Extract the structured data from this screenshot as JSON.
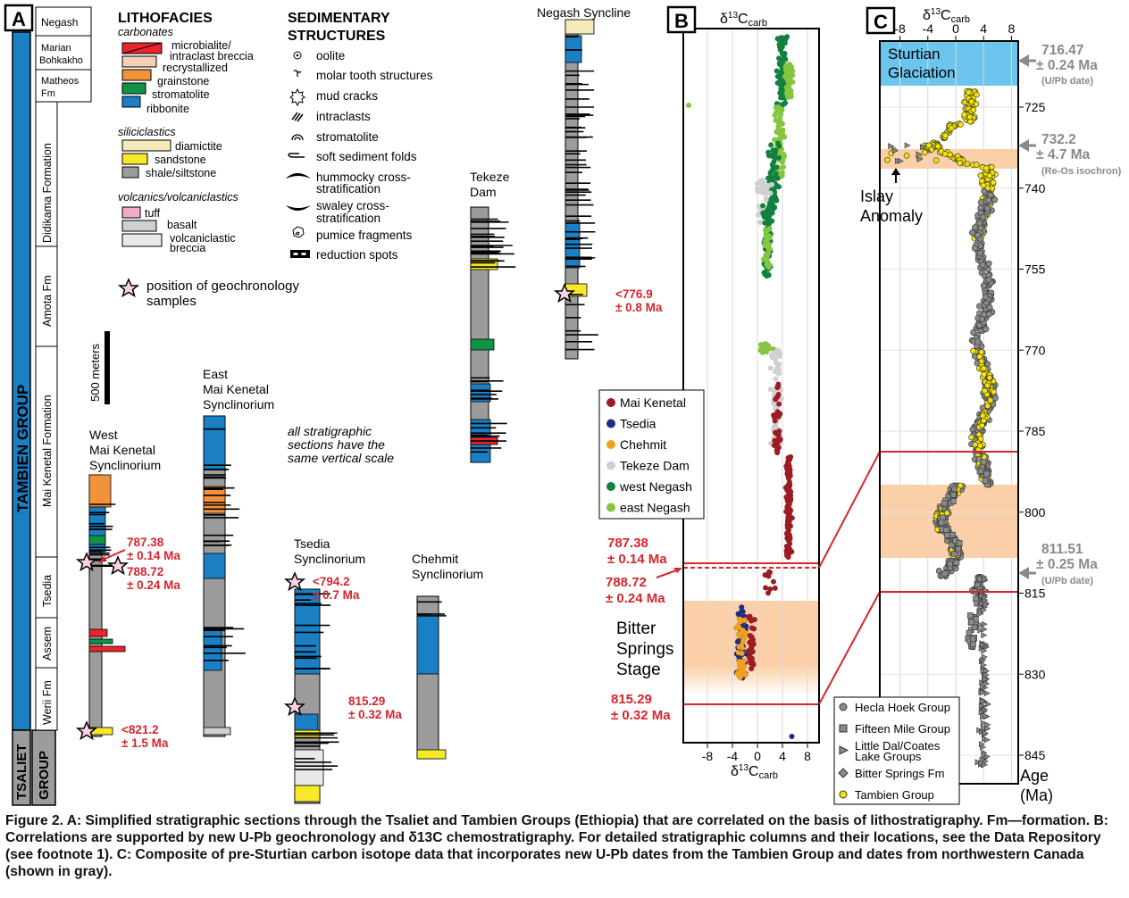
{
  "panels": {
    "a": "A",
    "b": "B",
    "c": "C"
  },
  "formations": {
    "negash": "Negash",
    "marian_1": "Marian",
    "marian_2": "Bohkakho",
    "matheos_1": "Matheos",
    "matheos_2": "Fm",
    "didikama": "Didikama Formation",
    "amota": "Amota Fm",
    "mai_kenetal": "Mai Kenetal Formation",
    "tsedia": "Tsedia",
    "assem": "Assem",
    "werii": "Werii Fm",
    "tambien_group": "TAMBIEN GROUP",
    "tsaliet_1": "TSALIET",
    "tsaliet_2": "GROUP"
  },
  "legend_litho": {
    "title": "LITHOFACIES",
    "carbonates": "carbonates",
    "microbialite_1": "microbialite/",
    "microbialite_2": "intraclast breccia",
    "recrystallized": "recrystallized",
    "grainstone": "grainstone",
    "stromatolite": "stromatolite",
    "ribbonite": "ribbonite",
    "siliciclastics": "siliciclastics",
    "diamictite": "diamictite",
    "sandstone": "sandstone",
    "shale": "shale/siltstone",
    "volcanics": "volcanics/volcaniclastics",
    "tuff": "tuff",
    "basalt": "basalt",
    "volc_1": "volcaniclastic",
    "volc_2": "breccia",
    "geochron_1": "position of geochronology",
    "geochron_2": "samples",
    "colors": {
      "microbialite": "#e8262b",
      "recrystallized": "#f6d0b4",
      "grainstone": "#f2933c",
      "stromatolite": "#0f9447",
      "ribbonite": "#1a7fc3",
      "diamictite": "#f4e9b8",
      "sandstone": "#f7e92a",
      "shale": "#9c9c9c",
      "tuff": "#f2aac8",
      "basalt": "#cfcfcf",
      "volcaniclastic": "#e8e8e8"
    }
  },
  "legend_sed": {
    "title_1": "SEDIMENTARY",
    "title_2": "STRUCTURES",
    "oolite": "oolite",
    "molar": "molar tooth structures",
    "mudcracks": "mud cracks",
    "intraclasts": "intraclasts",
    "stromatolite": "stromatolite",
    "folds": "soft sediment folds",
    "hcs_1": "hummocky cross-",
    "hcs_2": "stratification",
    "scs_1": "swaley cross-",
    "scs_2": "stratification",
    "pumice": "pumice fragments",
    "reduction": "reduction spots"
  },
  "scale": {
    "label": "500 meters",
    "note_1": "all stratigraphic",
    "note_2": "sections have the",
    "note_3": "same vertical scale"
  },
  "sections": {
    "west_1": "West",
    "west_2": "Mai Kenetal",
    "west_3": "Synclinorium",
    "east_1": "East",
    "east_2": "Mai Kenetal",
    "east_3": "Synclinorium",
    "tsedia_1": "Tsedia",
    "tsedia_2": "Synclinorium",
    "chehmit_1": "Chehmit",
    "chehmit_2": "Synclinorium",
    "tekeze_1": "Tekeze",
    "tekeze_2": "Dam",
    "negash": "Negash Syncline"
  },
  "dates_a": {
    "d787_1": "787.38",
    "d787_2": "± 0.14 Ma",
    "d788_1": "788.72",
    "d788_2": "± 0.24 Ma",
    "d821_1": "<821.2",
    "d821_2": "± 1.5 Ma",
    "d794_1": "<794.2",
    "d794_2": "± 0.7 Ma",
    "d815_1": "815.29",
    "d815_2": "± 0.32 Ma",
    "d776_1": "<776.9",
    "d776_2": "± 0.8 Ma"
  },
  "panel_b": {
    "title_pre": "δ",
    "title_sup": "13",
    "title_main": "C",
    "title_sub": "carb",
    "xticks": [
      "-8",
      "-4",
      "0",
      "4",
      "8"
    ],
    "legend": [
      {
        "label": "Mai Kenetal",
        "color": "#9b1c22"
      },
      {
        "label": "Tsedia",
        "color": "#232a7e"
      },
      {
        "label": "Chehmit",
        "color": "#f0a020"
      },
      {
        "label": "Tekeze Dam",
        "color": "#d0d0d0"
      },
      {
        "label": "west Negash",
        "color": "#12803f"
      },
      {
        "label": "east Negash",
        "color": "#86c540"
      }
    ],
    "d787_1": "787.38",
    "d787_2": "± 0.14 Ma",
    "d788_1": "788.72",
    "d788_2": "± 0.24 Ma",
    "bitter_1": "Bitter",
    "bitter_2": "Springs",
    "bitter_3": "Stage",
    "d815_1": "815.29",
    "d815_2": "± 0.32 Ma"
  },
  "panel_c": {
    "xticks": [
      "-8",
      "-4",
      "0",
      "4",
      "8"
    ],
    "yticks": [
      "725",
      "740",
      "755",
      "770",
      "785",
      "800",
      "815",
      "830",
      "845"
    ],
    "yaxis_1": "Age",
    "yaxis_2": "(Ma)",
    "sturtian_1": "Sturtian",
    "sturtian_2": "Glaciation",
    "islay_1": "Islay",
    "islay_2": "Anomaly",
    "d716_1": "716.47",
    "d716_2": "± 0.24 Ma",
    "d716_3": "(U/Pb date)",
    "d732_1": "732.2",
    "d732_2": "± 4.7 Ma",
    "d732_3": "(Re-Os isochron)",
    "d811_1": "811.51",
    "d811_2": "± 0.25 Ma",
    "d811_3": "(U/Pb date)",
    "legend": [
      {
        "label": "Hecla Hoek Group",
        "marker": "circle",
        "color": "#8a8a8a"
      },
      {
        "label": "Fifteen Mile Group",
        "marker": "square",
        "color": "#8a8a8a"
      },
      {
        "label_1": "Little Dal/Coates",
        "label_2": "Lake Groups",
        "marker": "triangle",
        "color": "#8a8a8a"
      },
      {
        "label": "Bitter Springs Fm",
        "marker": "diamond",
        "color": "#8a8a8a"
      },
      {
        "label": "Tambien Group",
        "marker": "circle",
        "color": "#f5e400"
      }
    ]
  },
  "caption": "Figure 2. A: Simplified stratigraphic sections through the Tsaliet and Tambien Groups (Ethiopia) that are correlated on the basis of lithostratigraphy. Fm—formation. B: Correlations are supported by new U-Pb geochronology and δ13C chemostratigraphy. For detailed stratigraphic columns and their locations, see the Data Repository (see footnote 1). C: Composite of pre-Sturtian carbon isotope data that incorporates new U-Pb dates from the Tambien Group and dates from northwestern Canada (shown in gray)."
}
